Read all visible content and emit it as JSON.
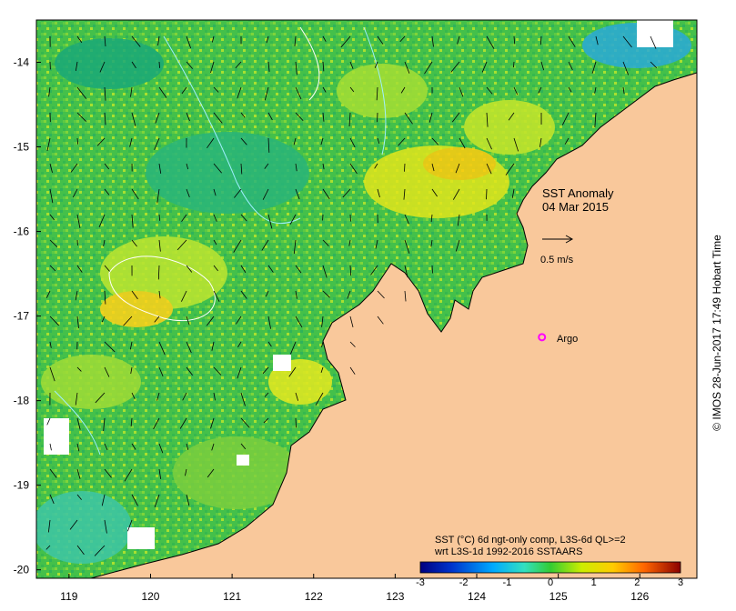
{
  "map": {
    "title_line1": "SST Anomaly",
    "title_line2": "04 Mar 2015",
    "vector_scale_label": "0.5 m/s",
    "argo_label": "Argo",
    "colorbar_title_line1": "SST (°C) 6d ngt-only comp, L3S-6d QL>=2",
    "colorbar_title_line2": "wrt L3S-1d 1992-2016 SSTAARS",
    "colorbar_ticks": [
      "-3",
      "-2",
      "-1",
      "0",
      "1",
      "2",
      "3"
    ],
    "credit": "© IMOS 28-Jun-2017 17:49 Hobart Time",
    "x_ticks": [
      "119",
      "120",
      "121",
      "122",
      "123",
      "124",
      "125",
      "126"
    ],
    "y_ticks": [
      "-14",
      "-15",
      "-16",
      "-17",
      "-18",
      "-19",
      "-20"
    ],
    "lon_range": [
      118.6,
      126.7
    ],
    "lat_range": [
      -20.1,
      -13.5
    ],
    "argo_position": [
      124.8,
      -17.25
    ],
    "colors": {
      "land": "#f9c89b",
      "ocean_base": "#3fbf4a",
      "argo": "#ff00ff",
      "colorbar": [
        "#000080",
        "#0033cc",
        "#00aaff",
        "#33e0c0",
        "#33cc33",
        "#ccee00",
        "#ffcc00",
        "#ff6600",
        "#8b0000"
      ]
    }
  }
}
